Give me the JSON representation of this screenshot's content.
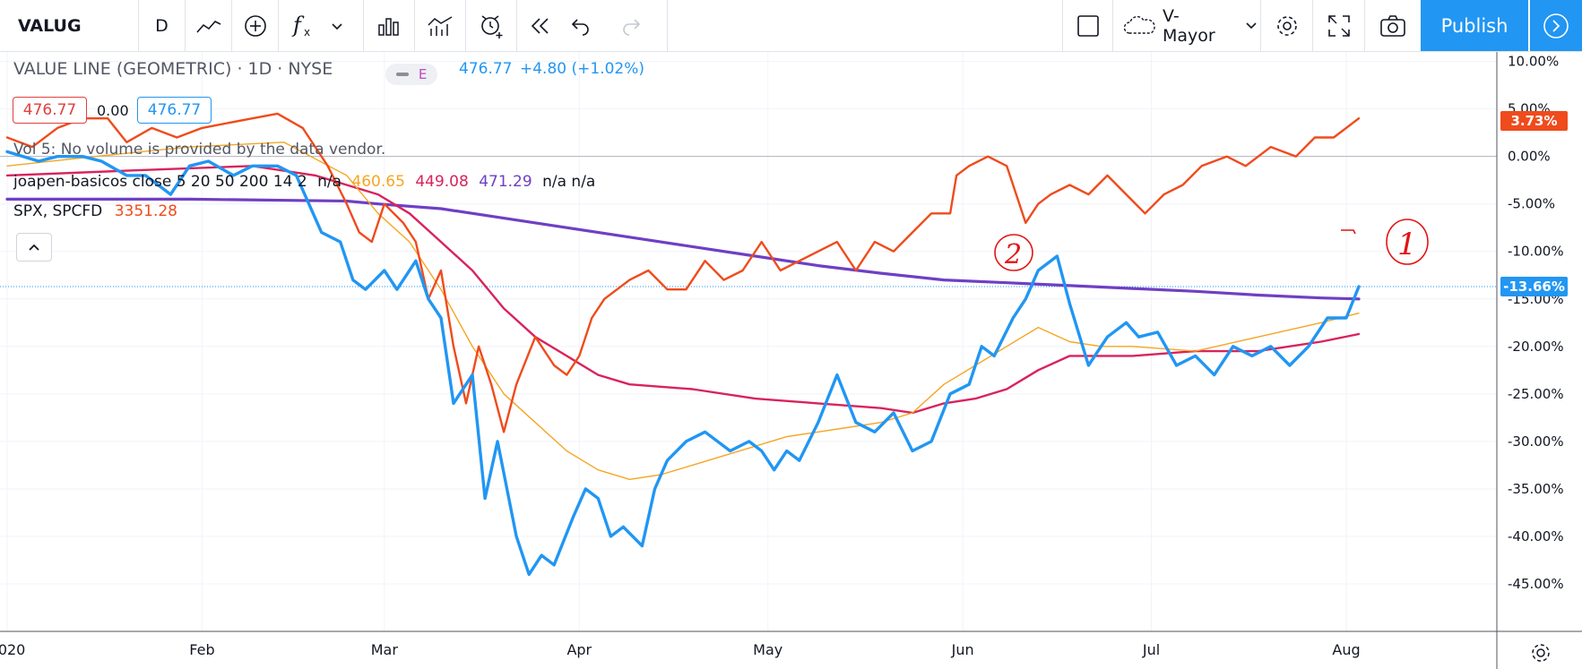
{
  "toolbar": {
    "symbol": "VALUG",
    "interval": "D",
    "layout_name": "V-Mayor",
    "publish_label": "Publish"
  },
  "legend": {
    "main_title": "VALUE LINE (GEOMETRIC) · 1D · NYSE",
    "pill_letter": "E",
    "last": "476.77",
    "change": "+4.80 (+1.02%)",
    "box1": "476.77",
    "box_mid": "0.00",
    "box2": "476.77",
    "vol_text": "Vol 5: No volume is provided by the data vendor.",
    "ind_name": "joapen-basicos close 5 20 50 200 14 2",
    "ind_na1": "n/a",
    "ind_v1": "460.65",
    "ind_v2": "449.08",
    "ind_v3": "471.29",
    "ind_na2": "n/a n/a",
    "spx_name": "SPX, SPCFD",
    "spx_value": "3351.28"
  },
  "axis_tags": {
    "spx": "3.73%",
    "main": "-13.66%"
  },
  "annotations": [
    "2",
    "1"
  ],
  "colors": {
    "main": "#2196f3",
    "spx": "#ef4b1c",
    "ma20": "#f5a623",
    "ma50": "#d8235c",
    "ma200": "#6f3fc4",
    "accent": "#2196f3",
    "annotation": "#e11414"
  },
  "chart_data": {
    "type": "line",
    "ylabel": "",
    "ylim": [
      -50,
      11
    ],
    "y_ticks": [
      "10.00%",
      "5.00%",
      "0.00%",
      "-5.00%",
      "-10.00%",
      "-15.00%",
      "-20.00%",
      "-25.00%",
      "-30.00%",
      "-35.00%",
      "-40.00%",
      "-45.00%"
    ],
    "y_tick_values": [
      10,
      5,
      0,
      -5,
      -10,
      -15,
      -20,
      -25,
      -30,
      -35,
      -40,
      -45
    ],
    "x_ticks": [
      "2020",
      "Feb",
      "Mar",
      "Apr",
      "May",
      "Jun",
      "Jul",
      "Aug"
    ],
    "x_tick_values": [
      1,
      32,
      61,
      92,
      122,
      153,
      183,
      214
    ],
    "xlim": [
      0,
      240
    ],
    "series": [
      {
        "key": "main",
        "x": [
          1,
          6,
          9,
          13,
          16,
          20,
          23,
          27,
          30,
          33,
          37,
          40,
          44,
          47,
          51,
          54,
          56,
          58,
          61,
          63,
          66,
          68,
          70,
          72,
          75,
          77,
          79,
          82,
          84,
          86,
          88,
          91,
          93,
          95,
          97,
          99,
          102,
          104,
          106,
          109,
          112,
          116,
          119,
          121,
          123,
          125,
          127,
          130,
          133,
          136,
          139,
          142,
          145,
          148,
          151,
          154,
          156,
          158,
          161,
          163,
          165,
          168,
          170,
          173,
          176,
          179,
          181,
          184,
          187,
          190,
          193,
          196,
          199,
          202,
          205,
          208,
          211,
          214,
          216
        ],
        "y": [
          0.5,
          -0.5,
          0,
          0,
          -0.5,
          -2,
          -2,
          -4,
          -1,
          -0.5,
          -2,
          -1,
          -1,
          -2,
          -8,
          -9,
          -13,
          -14,
          -12,
          -14,
          -11,
          -15,
          -17,
          -26,
          -23,
          -36,
          -30,
          -40,
          -44,
          -42,
          -43,
          -38,
          -35,
          -36,
          -40,
          -39,
          -41,
          -35,
          -32,
          -30,
          -29,
          -31,
          -30,
          -31,
          -33,
          -31,
          -32,
          -28,
          -23,
          -28,
          -29,
          -27,
          -31,
          -30,
          -25,
          -24,
          -20,
          -21,
          -17,
          -15,
          -12,
          -10.5,
          -15.5,
          -22,
          -19,
          -17.5,
          -19,
          -18.5,
          -22,
          -21,
          -23,
          -20,
          -21,
          -20,
          -22,
          -20,
          -17,
          -17,
          -13.7
        ]
      },
      {
        "key": "spx",
        "x": [
          1,
          5,
          9,
          13,
          17,
          20,
          24,
          28,
          32,
          36,
          40,
          44,
          48,
          52,
          55,
          57,
          59,
          61,
          64,
          66,
          68,
          70,
          72,
          74,
          76,
          78,
          80,
          82,
          85,
          88,
          90,
          92,
          94,
          96,
          98,
          100,
          103,
          106,
          109,
          112,
          115,
          118,
          121,
          124,
          127,
          130,
          133,
          136,
          139,
          142,
          145,
          148,
          151,
          152,
          154,
          157,
          160,
          163,
          165,
          167,
          170,
          173,
          176,
          179,
          182,
          185,
          188,
          191,
          195,
          198,
          202,
          206,
          209,
          212,
          216
        ],
        "y": [
          2,
          1,
          3,
          4,
          4,
          1.5,
          3,
          2,
          3,
          3.5,
          4,
          4.5,
          3,
          -1,
          -5,
          -8,
          -9,
          -5,
          -7,
          -9,
          -15,
          -12,
          -20,
          -26,
          -20,
          -24,
          -29,
          -24,
          -19,
          -22,
          -23,
          -21,
          -17,
          -15,
          -14,
          -13,
          -12,
          -14,
          -14,
          -11,
          -13,
          -12,
          -9,
          -12,
          -11,
          -10,
          -9,
          -12,
          -9,
          -10,
          -8,
          -6,
          -6,
          -2,
          -1,
          0,
          -1,
          -7,
          -5,
          -4,
          -3,
          -4,
          -2,
          -4,
          -6,
          -4,
          -3,
          -1,
          0,
          -1,
          1,
          0,
          2,
          2,
          4
        ]
      },
      {
        "key": "ma20",
        "x": [
          1,
          15,
          30,
          45,
          55,
          60,
          65,
          70,
          75,
          80,
          85,
          90,
          95,
          100,
          105,
          110,
          115,
          120,
          125,
          130,
          135,
          140,
          145,
          150,
          155,
          160,
          165,
          170,
          175,
          180,
          190,
          200,
          210,
          216
        ],
        "y": [
          -1,
          0,
          1,
          1.5,
          -2,
          -6,
          -9,
          -14,
          -20,
          -25,
          -28,
          -31,
          -33,
          -34,
          -33.5,
          -32.5,
          -31.5,
          -30.5,
          -29.5,
          -29,
          -28.5,
          -28,
          -27,
          -24,
          -22,
          -20,
          -18,
          -19.5,
          -20,
          -20,
          -20.5,
          -19,
          -17.5,
          -16.5
        ]
      },
      {
        "key": "ma50",
        "x": [
          1,
          20,
          40,
          50,
          55,
          60,
          65,
          70,
          75,
          80,
          85,
          90,
          95,
          100,
          110,
          120,
          130,
          140,
          145,
          150,
          155,
          160,
          165,
          170,
          180,
          190,
          200,
          210,
          216
        ],
        "y": [
          -2,
          -1.5,
          -1,
          -2,
          -3,
          -4,
          -6,
          -9,
          -12,
          -16,
          -19,
          -21,
          -23,
          -24,
          -24.5,
          -25.5,
          -26,
          -26.5,
          -27,
          -26,
          -25.5,
          -24.5,
          -22.5,
          -21,
          -21,
          -20.5,
          -20.5,
          -19.5,
          -18.7
        ]
      },
      {
        "key": "ma200",
        "x": [
          1,
          30,
          55,
          60,
          70,
          80,
          90,
          100,
          110,
          120,
          130,
          140,
          150,
          160,
          170,
          180,
          190,
          200,
          210,
          216
        ],
        "y": [
          -4.5,
          -4.5,
          -4.7,
          -5,
          -5.5,
          -6.5,
          -7.5,
          -8.5,
          -9.5,
          -10.5,
          -11.5,
          -12.3,
          -13,
          -13.3,
          -13.6,
          -13.9,
          -14.2,
          -14.6,
          -14.9,
          -15
        ]
      }
    ]
  }
}
